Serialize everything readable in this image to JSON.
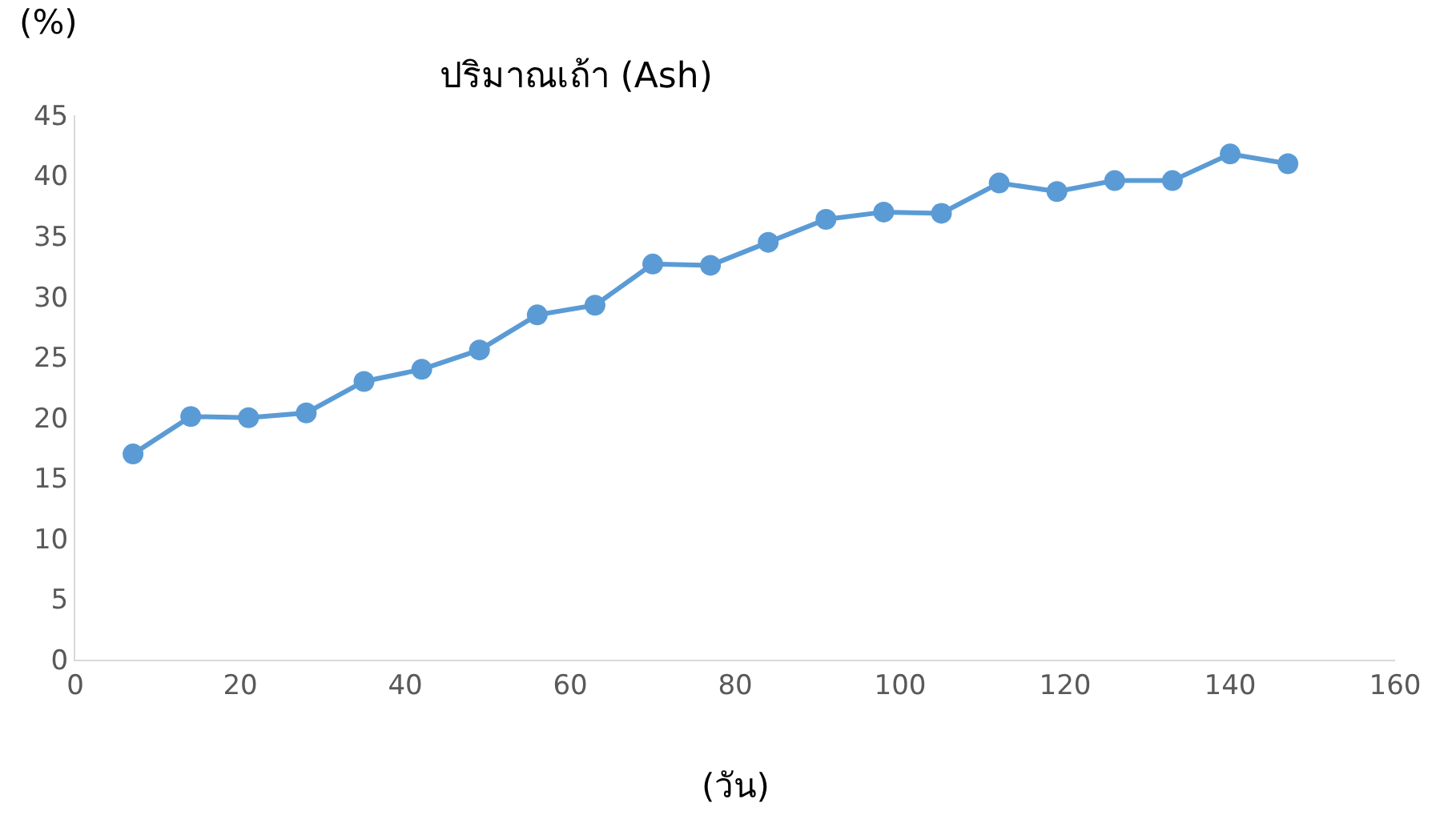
{
  "chart_data": {
    "type": "line",
    "title": "ปริมาณเถ้า (Ash)",
    "xlabel": "(วัน)",
    "ylabel": "(%)",
    "x": [
      7,
      14,
      21,
      28,
      35,
      42,
      49,
      56,
      63,
      70,
      77,
      84,
      91,
      98,
      105,
      112,
      119,
      126,
      133,
      140,
      147
    ],
    "series": [
      {
        "color": "#5b9bd5",
        "values": [
          17.0,
          20.1,
          20.0,
          20.4,
          23.0,
          24.0,
          25.6,
          28.5,
          29.3,
          32.7,
          32.6,
          34.5,
          36.4,
          37.0,
          36.9,
          39.4,
          38.7,
          39.6,
          39.6,
          41.8,
          41.0
        ]
      }
    ],
    "xlim": [
      0,
      160
    ],
    "xticks": [
      0,
      20,
      40,
      60,
      80,
      100,
      120,
      140,
      160
    ],
    "ylim": [
      0,
      45
    ],
    "yticks": [
      0,
      5,
      10,
      15,
      20,
      25,
      30,
      35,
      40,
      45
    ],
    "marker": "circle",
    "line_style": "solid"
  }
}
